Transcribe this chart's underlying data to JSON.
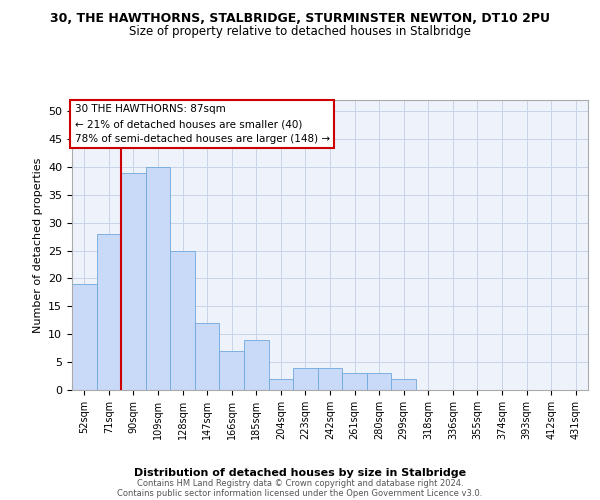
{
  "title": "30, THE HAWTHORNS, STALBRIDGE, STURMINSTER NEWTON, DT10 2PU",
  "subtitle": "Size of property relative to detached houses in Stalbridge",
  "xlabel": "Distribution of detached houses by size in Stalbridge",
  "ylabel": "Number of detached properties",
  "bar_labels": [
    "52sqm",
    "71sqm",
    "90sqm",
    "109sqm",
    "128sqm",
    "147sqm",
    "166sqm",
    "185sqm",
    "204sqm",
    "223sqm",
    "242sqm",
    "261sqm",
    "280sqm",
    "299sqm",
    "318sqm",
    "336sqm",
    "355sqm",
    "374sqm",
    "393sqm",
    "412sqm",
    "431sqm"
  ],
  "bar_values": [
    19,
    28,
    39,
    40,
    25,
    12,
    7,
    9,
    2,
    4,
    4,
    3,
    3,
    2,
    0,
    0,
    0,
    0,
    0,
    0,
    0
  ],
  "bar_color": "#c9daf8",
  "bar_edge_color": "#6fa8dc",
  "annotation_text": "30 THE HAWTHORNS: 87sqm\n← 21% of detached houses are smaller (40)\n78% of semi-detached houses are larger (148) →",
  "annotation_box_color": "#ffffff",
  "annotation_box_edge_color": "#cc0000",
  "property_line_x": 1.5,
  "ylim": [
    0,
    52
  ],
  "yticks": [
    0,
    5,
    10,
    15,
    20,
    25,
    30,
    35,
    40,
    45,
    50
  ],
  "grid_color": "#c8d4e8",
  "background_color": "#ffffff",
  "axes_background": "#eef2fb",
  "footer_line1": "Contains HM Land Registry data © Crown copyright and database right 2024.",
  "footer_line2": "Contains public sector information licensed under the Open Government Licence v3.0."
}
